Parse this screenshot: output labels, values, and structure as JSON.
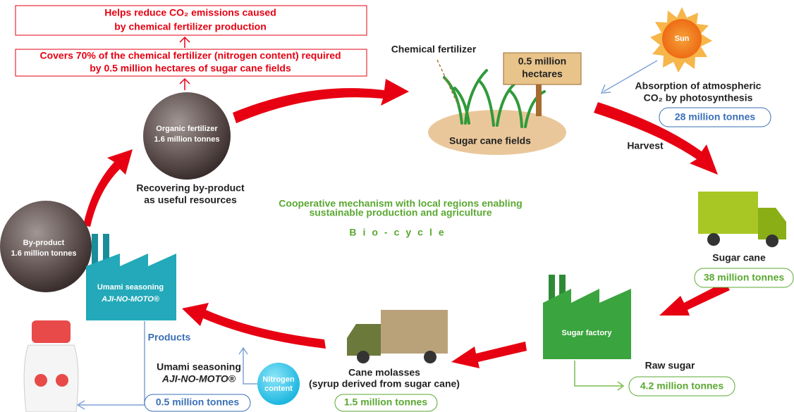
{
  "top_notes": {
    "emissions": [
      "Helps reduce CO₂ emissions caused",
      "by chemical fertilizer production"
    ],
    "coverage": [
      "Covers 70% of the chemical fertilizer (nitrogen content) required",
      "by 0.5 million hectares of sugar cane fields"
    ]
  },
  "fields": {
    "chemical_fertilizer": "Chemical fertilizer",
    "area": [
      "0.5 million",
      "hectares"
    ],
    "label": "Sugar cane fields"
  },
  "sun": {
    "label": "Sun",
    "absorption": [
      "Absorption of atmospheric",
      "CO₂ by photosynthesis"
    ],
    "amount": "28 million tonnes"
  },
  "harvest": "Harvest",
  "organic_fertilizer": [
    "Organic fertilizer",
    "1.6 million tonnes"
  ],
  "recovering": [
    "Recovering by-product",
    "as useful resources"
  ],
  "center": {
    "subtitle": [
      "Cooperative mechanism with local regions enabling",
      "sustainable production and agriculture"
    ],
    "title": "Bio-cycle"
  },
  "by_product": [
    "By-product",
    "1.6 million tonnes"
  ],
  "umami_factory": [
    "Umami seasoning",
    "AJI-NO-MOTO®"
  ],
  "sugar_cane": {
    "label": "Sugar cane",
    "amount": "38 million tonnes"
  },
  "sugar_factory": "Sugar factory",
  "raw_sugar": {
    "label": "Raw sugar",
    "amount": "4.2 million tonnes"
  },
  "products": {
    "label": "Products",
    "name": [
      "Umami seasoning",
      "AJI-NO-MOTO®"
    ],
    "amount": "0.5 million tonnes"
  },
  "nitrogen": [
    "Nitrogen",
    "content"
  ],
  "molasses": {
    "label": [
      "Cane molasses",
      "(syrup derived from sugar cane)"
    ],
    "amount": "1.5 million tonnes"
  }
}
